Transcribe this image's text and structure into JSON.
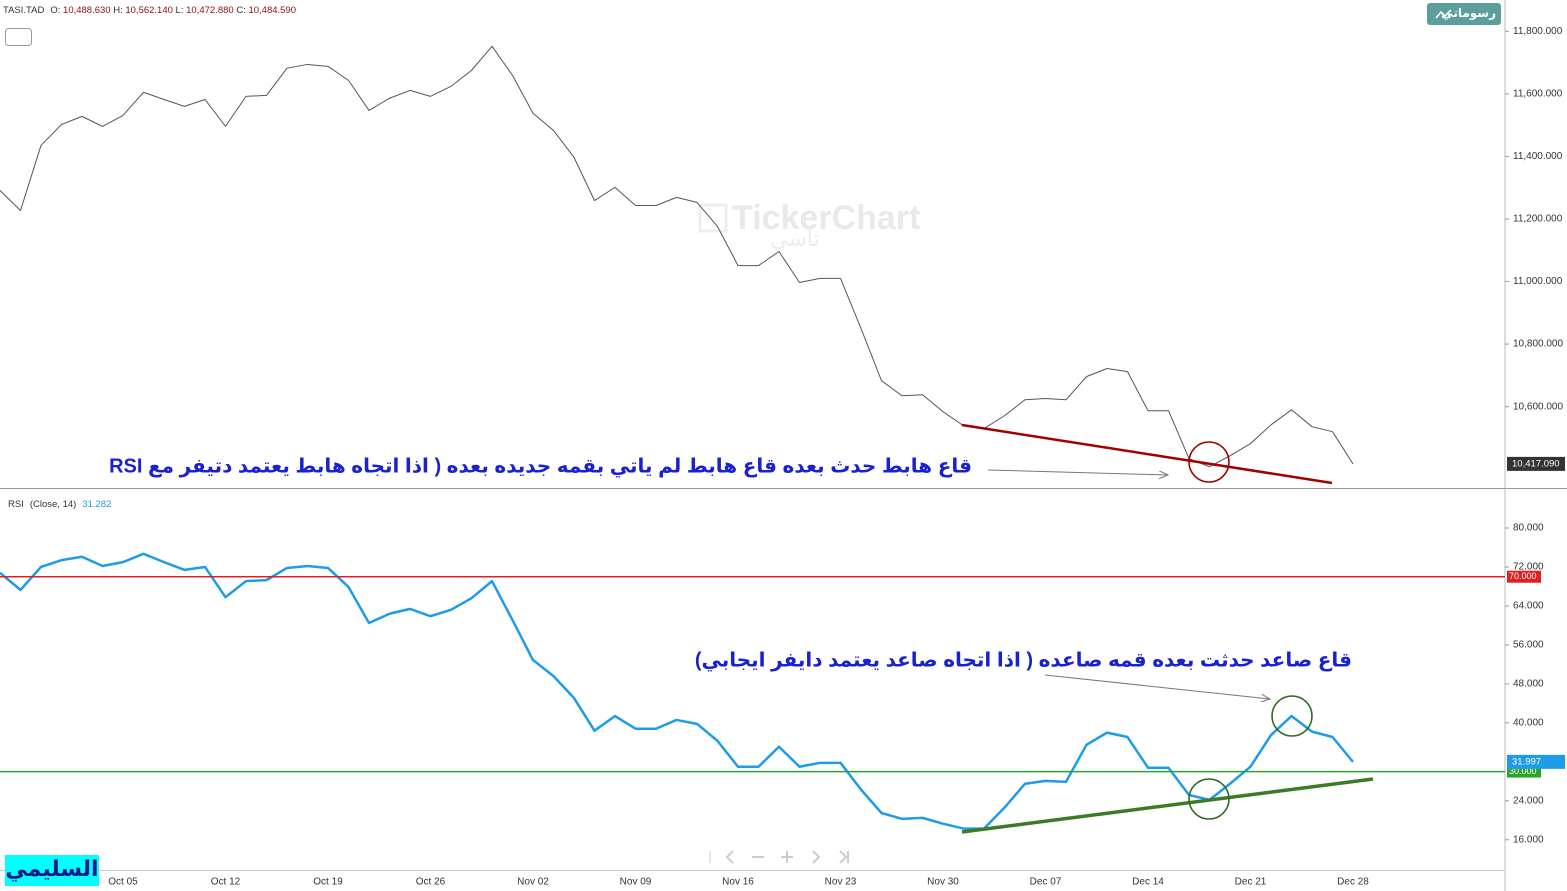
{
  "chart_data": [
    {
      "type": "line",
      "header": {
        "symbol": "TASI.TAD",
        "fields": [
          {
            "name": "O:",
            "value": "10,488.630"
          },
          {
            "name": "H:",
            "value": "10,562.140"
          },
          {
            "name": "L:",
            "value": "10,472.880"
          },
          {
            "name": "C:",
            "value": "10,484.590"
          }
        ]
      },
      "button": "رسوماتي",
      "watermark": "TickerChart",
      "watermark_sub": "تاسي",
      "author": "السليمي",
      "annotation": "قاع هابط حدث بعده قاع هابط لم ياتي بقمه جديده بعده ( اذا اتجاه هابط يعتمد دتيفر مع RSI",
      "categories": [
        null,
        null,
        null,
        null,
        null,
        null,
        "Oct 05",
        null,
        null,
        null,
        null,
        "Oct 12",
        null,
        null,
        null,
        null,
        "Oct 19",
        null,
        null,
        null,
        null,
        "Oct 26",
        null,
        null,
        null,
        null,
        "Nov 02",
        null,
        null,
        null,
        null,
        "Nov 09",
        null,
        null,
        null,
        null,
        "Nov 16",
        null,
        null,
        null,
        null,
        "Nov 23",
        null,
        null,
        null,
        null,
        "Nov 30",
        null,
        null,
        null,
        null,
        "Dec 07",
        null,
        null,
        null,
        null,
        "Dec 14",
        null,
        null,
        null,
        null,
        "Dec 21",
        null,
        null,
        null,
        null,
        "Dec 28"
      ],
      "series": [
        {
          "name": "TASI.TAD",
          "color": "#555555",
          "values": [
            11291,
            11227,
            11435,
            11502,
            11528,
            11496,
            11531,
            11605,
            11582,
            11560,
            11582,
            11496,
            11592,
            11595,
            11682,
            11694,
            11688,
            11643,
            11547,
            11586,
            11611,
            11592,
            11624,
            11675,
            11752,
            11659,
            11538,
            11483,
            11397,
            11259,
            11301,
            11243,
            11243,
            11269,
            11253,
            11176,
            11051,
            11051,
            11096,
            10997,
            11010,
            11010,
            10850,
            10683,
            10635,
            10638,
            10584,
            10539,
            10530,
            10571,
            10622,
            10626,
            10622,
            10696,
            10722,
            10712,
            10587,
            10587,
            10434,
            10408,
            10443,
            10482,
            10542,
            10590,
            10536,
            10520,
            10417.09
          ]
        }
      ],
      "last_label": "10,417.090",
      "ylim": [
        10340,
        11900
      ],
      "yticks": [
        {
          "value": 10600,
          "label": "10,600.000"
        },
        {
          "value": 10800,
          "label": "10,800.000"
        },
        {
          "value": 11000,
          "label": "11,000.000"
        },
        {
          "value": 11200,
          "label": "11,200.000"
        },
        {
          "value": 11400,
          "label": "11,400.000"
        },
        {
          "value": 11600,
          "label": "11,600.000"
        },
        {
          "value": 11800,
          "label": "11,800.000"
        }
      ]
    },
    {
      "type": "line",
      "legend": {
        "name": "RSI",
        "params": "(Close, 14)",
        "value": "31.282"
      },
      "annotation": "قاع صاعد حدثت بعده قمه صاعده ( اذا اتجاه صاعد يعتمد دايفر ايجابي)",
      "series": [
        {
          "name": "RSI",
          "color": "#1e9be9",
          "values": [
            70.8,
            67.3,
            72.0,
            73.4,
            74.1,
            72.2,
            73.0,
            74.7,
            73.0,
            71.4,
            72.0,
            65.8,
            69.1,
            69.3,
            71.8,
            72.2,
            71.8,
            67.9,
            60.5,
            62.4,
            63.4,
            61.9,
            63.2,
            65.6,
            69.1,
            61.1,
            52.9,
            49.6,
            45.1,
            38.4,
            41.4,
            38.8,
            38.8,
            40.6,
            39.8,
            36.3,
            31.0,
            31.0,
            35.1,
            31.0,
            31.8,
            31.8,
            26.3,
            21.5,
            20.3,
            20.5,
            19.3,
            18.3,
            18.3,
            22.6,
            27.5,
            28.1,
            27.9,
            35.5,
            38.0,
            37.1,
            30.8,
            30.8,
            25.2,
            24.2,
            27.5,
            31.0,
            37.5,
            41.4,
            38.2,
            37.1,
            31.997
          ]
        }
      ],
      "last_label": "31.997",
      "levels": [
        {
          "value": 70,
          "label": "70.000",
          "color": "#e02020"
        },
        {
          "value": 30,
          "label": "30.000",
          "color": "#2aa52a"
        }
      ],
      "ylim": [
        9.8,
        87.8
      ],
      "yticks": [
        {
          "value": 16,
          "label": "16.000"
        },
        {
          "value": 24,
          "label": "24.000"
        },
        {
          "value": 40,
          "label": "40.000"
        },
        {
          "value": 48,
          "label": "48.000"
        },
        {
          "value": 56,
          "label": "56.000"
        },
        {
          "value": 64,
          "label": "64.000"
        },
        {
          "value": 72,
          "label": "72.000"
        },
        {
          "value": 80,
          "label": "80.000"
        }
      ]
    }
  ]
}
